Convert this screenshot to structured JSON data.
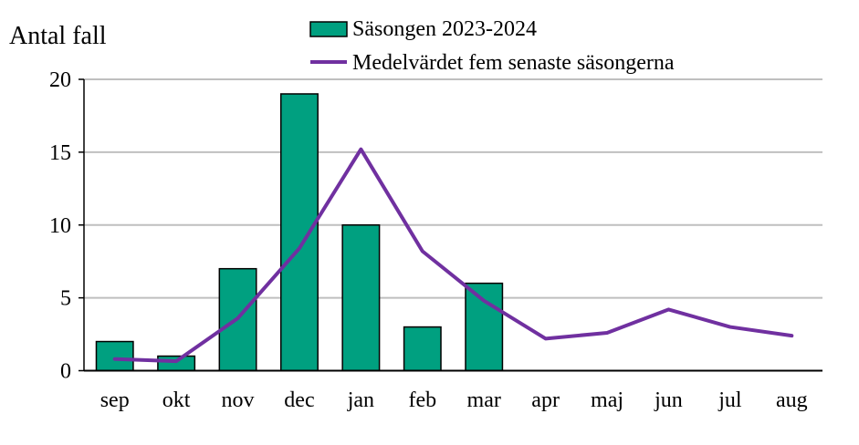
{
  "chart_data": {
    "type": "bar+line",
    "ylabel": "Antal fall",
    "ylim": [
      0,
      20
    ],
    "yticks": [
      0,
      5,
      10,
      15,
      20
    ],
    "grid": true,
    "legend_placement": "top",
    "categories": [
      "sep",
      "okt",
      "nov",
      "dec",
      "jan",
      "feb",
      "mar",
      "apr",
      "maj",
      "jun",
      "jul",
      "aug"
    ],
    "series": [
      {
        "name": "Säsongen 2023-2024",
        "type": "bar",
        "color": "#00A080",
        "values": [
          2,
          1,
          7,
          19,
          10,
          3,
          6,
          null,
          null,
          null,
          null,
          null
        ]
      },
      {
        "name": "Medelvärdet fem senaste säsongerna",
        "type": "line",
        "color": "#7030A0",
        "values": [
          0.8,
          0.65,
          3.6,
          8.4,
          15.2,
          8.2,
          4.8,
          2.2,
          2.6,
          4.2,
          3.0,
          2.4
        ]
      }
    ]
  }
}
